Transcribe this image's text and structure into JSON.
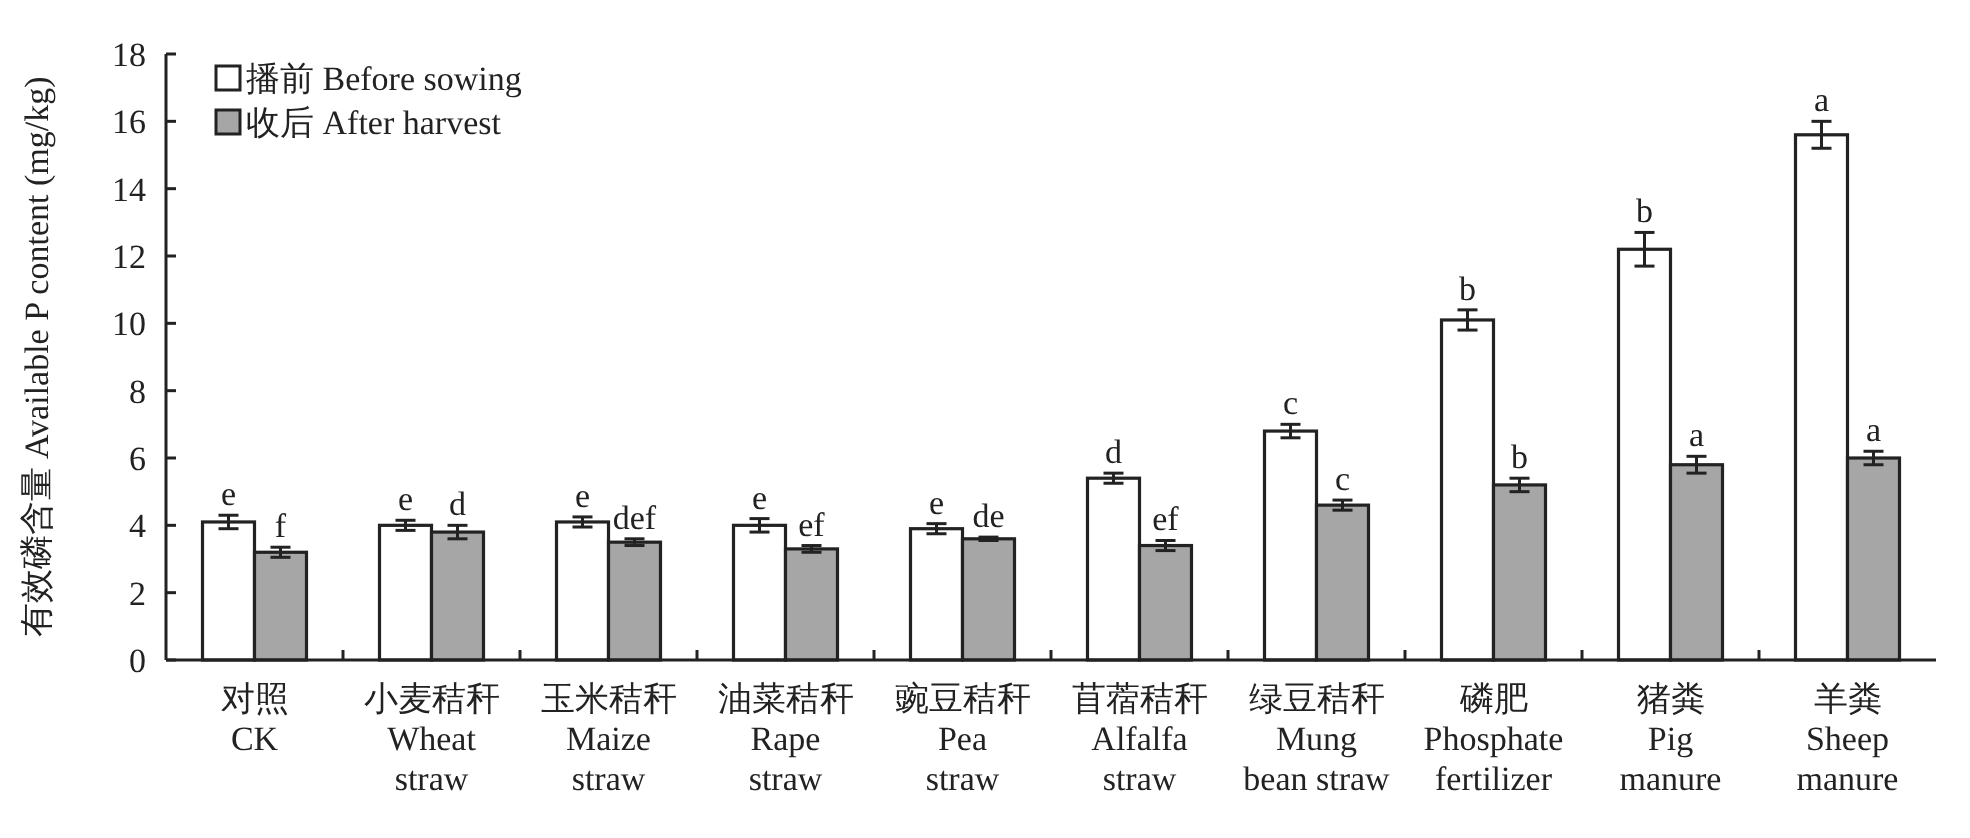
{
  "chart_data": {
    "type": "bar",
    "ylabel": "有效磷含量 Available P content (mg/kg)",
    "categories": [
      "对照\nCK",
      "小麦秸秆\nWheat\nstraw",
      "玉米秸秆\nMaize\nstraw",
      "油菜秸秆\nRape\nstraw",
      "豌豆秸秆\nPea\nstraw",
      "苜蓿秸秆\nAlfalfa\nstraw",
      "绿豆秸秆\nMung\nbean straw",
      "磷肥\nPhosphate\nfertilizer",
      "猪粪\nPig\nmanure",
      "羊粪\nSheep\nmanure"
    ],
    "series": [
      {
        "name": "播前 Before sowing",
        "color": "#ffffff",
        "values": [
          4.1,
          4.0,
          4.1,
          4.0,
          3.9,
          5.4,
          6.8,
          10.1,
          12.2,
          15.6
        ],
        "errors": [
          0.2,
          0.15,
          0.15,
          0.2,
          0.15,
          0.15,
          0.2,
          0.3,
          0.5,
          0.4
        ],
        "value_labels": [
          "e",
          "e",
          "e",
          "e",
          "e",
          "d",
          "c",
          "b",
          "b",
          "a"
        ]
      },
      {
        "name": "收后 After harvest",
        "color": "#a6a6a6",
        "values": [
          3.2,
          3.8,
          3.5,
          3.3,
          3.6,
          3.4,
          4.6,
          5.2,
          5.8,
          6.0
        ],
        "errors": [
          0.15,
          0.2,
          0.1,
          0.1,
          0.05,
          0.15,
          0.15,
          0.2,
          0.25,
          0.2
        ],
        "value_labels": [
          "f",
          "d",
          "def",
          "ef",
          "de",
          "ef",
          "c",
          "b",
          "a",
          "a"
        ]
      }
    ],
    "ylim": [
      0,
      18
    ],
    "yticks": [
      0,
      2,
      4,
      6,
      8,
      10,
      12,
      14,
      16,
      18
    ],
    "grid": false,
    "legend": "top left"
  }
}
